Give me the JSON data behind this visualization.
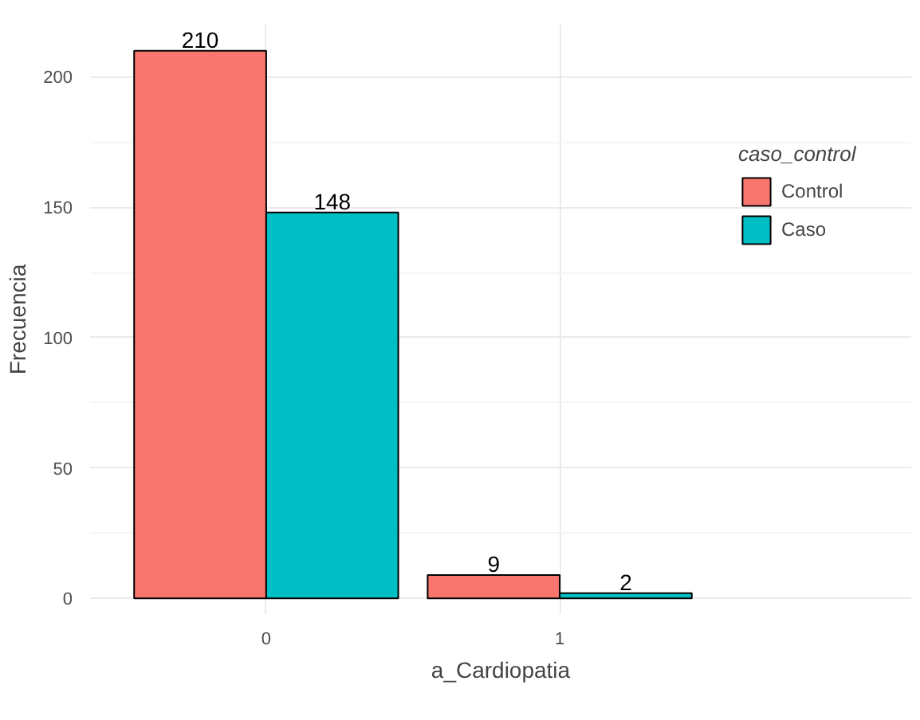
{
  "chart_data": {
    "type": "bar",
    "xlabel": "a_Cardiopatia",
    "ylabel": "Frecuencia",
    "legend_title": "caso_control",
    "categories": [
      "0",
      "1"
    ],
    "series": [
      {
        "name": "Control",
        "color": "#f8766d",
        "values": [
          210,
          9
        ]
      },
      {
        "name": "Caso",
        "color": "#00bfc4",
        "values": [
          148,
          2
        ]
      }
    ],
    "ylim": [
      -6,
      220
    ],
    "yticks": [
      0,
      50,
      100,
      150,
      200
    ],
    "grid": true,
    "legend": "right",
    "data_labels": true
  }
}
